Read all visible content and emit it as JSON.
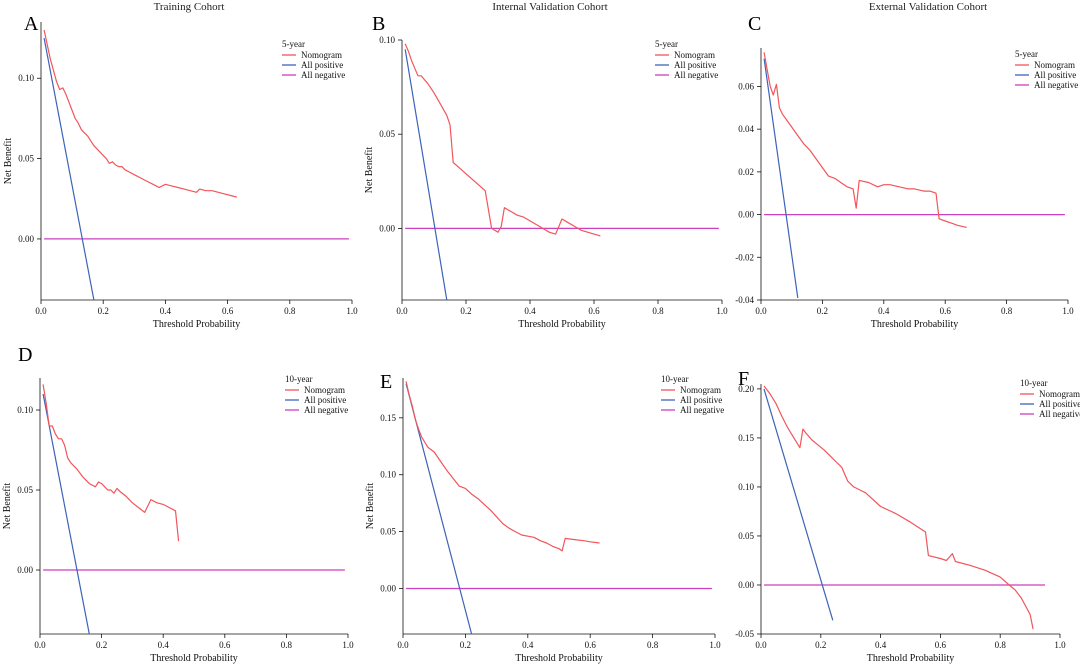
{
  "colors": {
    "nomogram": "#f2555a",
    "all_positive": "#3d63b8",
    "all_negative": "#cc3fbf",
    "axis": "#111111"
  },
  "chart_data": [
    {
      "type": "line",
      "panel_label": "A",
      "title": "Training Cohort",
      "xlabel": "Threshold Probability",
      "ylabel": "Net Benefit",
      "xlim": [
        0,
        1
      ],
      "ylim": [
        -0.038,
        0.135
      ],
      "xticks": [
        0.0,
        0.2,
        0.4,
        0.6,
        0.8,
        1.0
      ],
      "xtick_labels": [
        "0.0",
        "0.2",
        "0.4",
        "0.6",
        "0.8",
        "1.0"
      ],
      "yticks": [
        0.0,
        0.05,
        0.1
      ],
      "ytick_labels": [
        "0.00",
        "0.05",
        "0.10"
      ],
      "legend_title": "5-year",
      "legend_position": "top-right",
      "series": [
        {
          "name": "Nomogram",
          "color": "#f2555a",
          "x": [
            0.01,
            0.02,
            0.03,
            0.04,
            0.05,
            0.06,
            0.07,
            0.08,
            0.09,
            0.1,
            0.11,
            0.12,
            0.13,
            0.14,
            0.15,
            0.16,
            0.17,
            0.18,
            0.19,
            0.2,
            0.21,
            0.22,
            0.23,
            0.24,
            0.25,
            0.26,
            0.27,
            0.28,
            0.3,
            0.32,
            0.34,
            0.36,
            0.38,
            0.4,
            0.42,
            0.44,
            0.46,
            0.48,
            0.5,
            0.51,
            0.53,
            0.55,
            0.57,
            0.59,
            0.61,
            0.63
          ],
          "y": [
            0.13,
            0.121,
            0.112,
            0.105,
            0.098,
            0.093,
            0.094,
            0.09,
            0.085,
            0.08,
            0.075,
            0.072,
            0.068,
            0.066,
            0.064,
            0.061,
            0.058,
            0.056,
            0.054,
            0.052,
            0.05,
            0.047,
            0.048,
            0.046,
            0.045,
            0.045,
            0.043,
            0.042,
            0.04,
            0.038,
            0.036,
            0.034,
            0.032,
            0.034,
            0.033,
            0.032,
            0.031,
            0.03,
            0.029,
            0.031,
            0.03,
            0.03,
            0.029,
            0.028,
            0.027,
            0.026
          ]
        },
        {
          "name": "All positive",
          "color": "#3d63b8",
          "x": [
            0.01,
            0.17
          ],
          "y": [
            0.125,
            -0.038
          ]
        },
        {
          "name": "All negative",
          "color": "#cc3fbf",
          "x": [
            0.01,
            0.99
          ],
          "y": [
            0,
            0
          ]
        }
      ]
    },
    {
      "type": "line",
      "panel_label": "B",
      "title": "Internal Validation Cohort",
      "xlabel": "Threshold Probability",
      "ylabel": "Net Benefit",
      "xlim": [
        0,
        1
      ],
      "ylim": [
        -0.038,
        0.1
      ],
      "xticks": [
        0.0,
        0.2,
        0.4,
        0.6,
        0.8,
        1.0
      ],
      "xtick_labels": [
        "0.0",
        "0.2",
        "0.4",
        "0.6",
        "0.8",
        "1.0"
      ],
      "yticks": [
        0.0,
        0.05,
        0.1
      ],
      "ytick_labels": [
        "0.00",
        "0.05",
        "0.10"
      ],
      "legend_title": "5-year",
      "legend_position": "top-right",
      "series": [
        {
          "name": "Nomogram",
          "color": "#f2555a",
          "x": [
            0.01,
            0.02,
            0.03,
            0.04,
            0.05,
            0.06,
            0.07,
            0.08,
            0.1,
            0.12,
            0.14,
            0.15,
            0.16,
            0.18,
            0.2,
            0.22,
            0.24,
            0.26,
            0.28,
            0.3,
            0.31,
            0.32,
            0.33,
            0.34,
            0.36,
            0.38,
            0.4,
            0.42,
            0.44,
            0.46,
            0.48,
            0.5,
            0.52,
            0.54,
            0.56,
            0.58,
            0.6,
            0.62
          ],
          "y": [
            0.098,
            0.094,
            0.089,
            0.085,
            0.081,
            0.081,
            0.079,
            0.077,
            0.072,
            0.066,
            0.06,
            0.055,
            0.035,
            0.032,
            0.029,
            0.026,
            0.023,
            0.02,
            0.0,
            -0.002,
            0.001,
            0.011,
            0.01,
            0.009,
            0.007,
            0.006,
            0.004,
            0.002,
            0.0,
            -0.002,
            -0.003,
            0.005,
            0.003,
            0.001,
            -0.001,
            -0.002,
            -0.003,
            -0.004
          ]
        },
        {
          "name": "All positive",
          "color": "#3d63b8",
          "x": [
            0.01,
            0.14
          ],
          "y": [
            0.095,
            -0.038
          ]
        },
        {
          "name": "All negative",
          "color": "#cc3fbf",
          "x": [
            0.01,
            0.99
          ],
          "y": [
            0,
            0
          ]
        }
      ]
    },
    {
      "type": "line",
      "panel_label": "C",
      "title": "External Validation Cohort",
      "xlabel": "Threshold Probability",
      "ylabel": "",
      "xlim": [
        0,
        1
      ],
      "ylim": [
        -0.04,
        0.078
      ],
      "xticks": [
        0.0,
        0.2,
        0.4,
        0.6,
        0.8,
        1.0
      ],
      "xtick_labels": [
        "0.0",
        "0.2",
        "0.4",
        "0.6",
        "0.8",
        "1.0"
      ],
      "yticks": [
        -0.04,
        -0.02,
        0.0,
        0.02,
        0.04,
        0.06
      ],
      "ytick_labels": [
        "-0.04",
        "-0.02",
        "0.00",
        "0.02",
        "0.04",
        "0.06"
      ],
      "legend_title": "5-year",
      "legend_position": "top-right",
      "series": [
        {
          "name": "Nomogram",
          "color": "#f2555a",
          "x": [
            0.01,
            0.02,
            0.03,
            0.04,
            0.05,
            0.06,
            0.07,
            0.08,
            0.1,
            0.12,
            0.14,
            0.16,
            0.18,
            0.2,
            0.22,
            0.24,
            0.26,
            0.28,
            0.3,
            0.31,
            0.32,
            0.35,
            0.38,
            0.4,
            0.42,
            0.45,
            0.48,
            0.5,
            0.53,
            0.55,
            0.57,
            0.58,
            0.6,
            0.62,
            0.64,
            0.67
          ],
          "y": [
            0.076,
            0.068,
            0.06,
            0.056,
            0.061,
            0.05,
            0.047,
            0.045,
            0.041,
            0.037,
            0.033,
            0.03,
            0.026,
            0.022,
            0.018,
            0.017,
            0.015,
            0.013,
            0.012,
            0.003,
            0.016,
            0.015,
            0.013,
            0.014,
            0.014,
            0.013,
            0.012,
            0.012,
            0.011,
            0.011,
            0.01,
            -0.002,
            -0.003,
            -0.004,
            -0.005,
            -0.006
          ]
        },
        {
          "name": "All positive",
          "color": "#3d63b8",
          "x": [
            0.01,
            0.12
          ],
          "y": [
            0.073,
            -0.039
          ]
        },
        {
          "name": "All negative",
          "color": "#cc3fbf",
          "x": [
            0.01,
            0.99
          ],
          "y": [
            0,
            0
          ]
        }
      ]
    },
    {
      "type": "line",
      "panel_label": "D",
      "title": "",
      "xlabel": "Threshold Probability",
      "ylabel": "Net Benefit",
      "xlim": [
        0,
        1
      ],
      "ylim": [
        -0.04,
        0.12
      ],
      "xticks": [
        0.0,
        0.2,
        0.4,
        0.6,
        0.8,
        1.0
      ],
      "xtick_labels": [
        "0.0",
        "0.2",
        "0.4",
        "0.6",
        "0.8",
        "1.0"
      ],
      "yticks": [
        0.0,
        0.05,
        0.1
      ],
      "ytick_labels": [
        "0.00",
        "0.05",
        "0.10"
      ],
      "legend_title": "10-year",
      "legend_position": "top-right",
      "series": [
        {
          "name": "Nomogram",
          "color": "#f2555a",
          "x": [
            0.01,
            0.02,
            0.03,
            0.04,
            0.05,
            0.06,
            0.07,
            0.08,
            0.09,
            0.1,
            0.12,
            0.14,
            0.16,
            0.18,
            0.19,
            0.2,
            0.21,
            0.22,
            0.23,
            0.24,
            0.25,
            0.26,
            0.28,
            0.3,
            0.32,
            0.34,
            0.35,
            0.36,
            0.38,
            0.4,
            0.42,
            0.44,
            0.45
          ],
          "y": [
            0.116,
            0.104,
            0.09,
            0.09,
            0.085,
            0.082,
            0.082,
            0.078,
            0.07,
            0.067,
            0.063,
            0.058,
            0.054,
            0.052,
            0.055,
            0.054,
            0.052,
            0.05,
            0.05,
            0.048,
            0.051,
            0.049,
            0.046,
            0.042,
            0.039,
            0.036,
            0.04,
            0.044,
            0.042,
            0.041,
            0.039,
            0.037,
            0.018
          ]
        },
        {
          "name": "All positive",
          "color": "#3d63b8",
          "x": [
            0.01,
            0.16
          ],
          "y": [
            0.11,
            -0.04
          ]
        },
        {
          "name": "All negative",
          "color": "#cc3fbf",
          "x": [
            0.01,
            0.99
          ],
          "y": [
            0,
            0
          ]
        }
      ]
    },
    {
      "type": "line",
      "panel_label": "E",
      "title": "",
      "xlabel": "Threshold Probability",
      "ylabel": "Net Benefit",
      "xlim": [
        0,
        1
      ],
      "ylim": [
        -0.04,
        0.185
      ],
      "xticks": [
        0.0,
        0.2,
        0.4,
        0.6,
        0.8,
        1.0
      ],
      "xtick_labels": [
        "0.0",
        "0.2",
        "0.4",
        "0.6",
        "0.8",
        "1.0"
      ],
      "yticks": [
        0.0,
        0.05,
        0.1,
        0.15
      ],
      "ytick_labels": [
        "0.00",
        "0.05",
        "0.10",
        "0.15"
      ],
      "legend_title": "10-year",
      "legend_position": "top-right",
      "series": [
        {
          "name": "Nomogram",
          "color": "#f2555a",
          "x": [
            0.01,
            0.02,
            0.03,
            0.04,
            0.05,
            0.06,
            0.08,
            0.1,
            0.12,
            0.14,
            0.16,
            0.18,
            0.2,
            0.22,
            0.24,
            0.26,
            0.28,
            0.3,
            0.32,
            0.34,
            0.36,
            0.38,
            0.4,
            0.42,
            0.44,
            0.46,
            0.48,
            0.5,
            0.51,
            0.52,
            0.55,
            0.58,
            0.6,
            0.63
          ],
          "y": [
            0.182,
            0.17,
            0.16,
            0.148,
            0.14,
            0.133,
            0.124,
            0.12,
            0.112,
            0.104,
            0.097,
            0.09,
            0.088,
            0.083,
            0.079,
            0.074,
            0.069,
            0.063,
            0.057,
            0.053,
            0.05,
            0.047,
            0.046,
            0.045,
            0.042,
            0.04,
            0.037,
            0.035,
            0.033,
            0.044,
            0.043,
            0.042,
            0.041,
            0.04
          ]
        },
        {
          "name": "All positive",
          "color": "#3d63b8",
          "x": [
            0.01,
            0.22
          ],
          "y": [
            0.18,
            -0.04
          ]
        },
        {
          "name": "All negative",
          "color": "#cc3fbf",
          "x": [
            0.01,
            0.99
          ],
          "y": [
            0,
            0
          ]
        }
      ]
    },
    {
      "type": "line",
      "panel_label": "F",
      "title": "",
      "xlabel": "Threshold Probability",
      "ylabel": "",
      "xlim": [
        0,
        1
      ],
      "ylim": [
        -0.05,
        0.205
      ],
      "xticks": [
        0.0,
        0.2,
        0.4,
        0.6,
        0.8,
        1.0
      ],
      "xtick_labels": [
        "0.0",
        "0.2",
        "0.4",
        "0.6",
        "0.8",
        "1.0"
      ],
      "yticks": [
        -0.05,
        0.0,
        0.05,
        0.1,
        0.15,
        0.2
      ],
      "ytick_labels": [
        "-0.05",
        "0.00",
        "0.05",
        "0.10",
        "0.15",
        "0.20"
      ],
      "legend_title": "10-year",
      "legend_position": "top-left",
      "series": [
        {
          "name": "Nomogram",
          "color": "#f2555a",
          "x": [
            0.01,
            0.03,
            0.05,
            0.07,
            0.09,
            0.11,
            0.13,
            0.14,
            0.15,
            0.17,
            0.19,
            0.21,
            0.23,
            0.25,
            0.27,
            0.29,
            0.31,
            0.33,
            0.35,
            0.4,
            0.45,
            0.5,
            0.55,
            0.56,
            0.6,
            0.62,
            0.64,
            0.65,
            0.7,
            0.75,
            0.8,
            0.83,
            0.85,
            0.87,
            0.9,
            0.91
          ],
          "y": [
            0.203,
            0.195,
            0.185,
            0.172,
            0.16,
            0.15,
            0.14,
            0.159,
            0.155,
            0.148,
            0.143,
            0.138,
            0.132,
            0.126,
            0.12,
            0.106,
            0.1,
            0.097,
            0.094,
            0.08,
            0.073,
            0.064,
            0.054,
            0.03,
            0.027,
            0.025,
            0.032,
            0.024,
            0.02,
            0.015,
            0.008,
            0.0,
            -0.005,
            -0.013,
            -0.03,
            -0.045
          ]
        },
        {
          "name": "All positive",
          "color": "#3d63b8",
          "x": [
            0.01,
            0.24
          ],
          "y": [
            0.2,
            -0.036
          ]
        },
        {
          "name": "All negative",
          "color": "#cc3fbf",
          "x": [
            0.01,
            0.95
          ],
          "y": [
            0,
            0
          ]
        }
      ]
    }
  ]
}
